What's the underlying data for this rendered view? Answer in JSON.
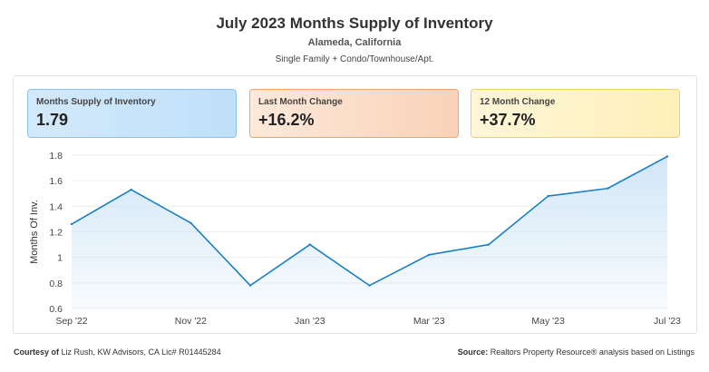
{
  "header": {
    "title": "July 2023 Months Supply of Inventory",
    "location": "Alameda, California",
    "property_types": "Single Family + Condo/Townhouse/Apt."
  },
  "cards": [
    {
      "label": "Months Supply of Inventory",
      "value": "1.79"
    },
    {
      "label": "Last Month Change",
      "value": "+16.2%"
    },
    {
      "label": "12 Month Change",
      "value": "+37.7%"
    }
  ],
  "chart_data": {
    "type": "area",
    "ylabel": "Months Of Inv.",
    "ylim": [
      0.6,
      1.8
    ],
    "yticks": [
      "1.8",
      "1.6",
      "1.4",
      "1.2",
      "1",
      "0.8",
      "0.6"
    ],
    "ytick_values": [
      1.8,
      1.6,
      1.4,
      1.2,
      1.0,
      0.8,
      0.6
    ],
    "x": [
      "Sep '22",
      "Oct '22",
      "Nov '22",
      "Dec '22",
      "Jan '23",
      "Feb '23",
      "Mar '23",
      "Apr '23",
      "May '23",
      "Jun '23",
      "Jul '23"
    ],
    "xticks": [
      "Sep '22",
      "Nov '22",
      "Jan '23",
      "Mar '23",
      "May '23",
      "Jul '23"
    ],
    "values": [
      1.26,
      1.53,
      1.27,
      0.78,
      1.1,
      0.78,
      1.02,
      1.1,
      1.48,
      1.54,
      1.79
    ],
    "line_color": "#1a7fc4",
    "fill_color": "#cfe5f6",
    "grid": "horizontal"
  },
  "footer": {
    "courtesy_label": "Courtesy of",
    "courtesy_text": "Liz Rush, KW Advisors, CA Lic# R01445284",
    "source_label": "Source:",
    "source_text": "Realtors Property Resource® analysis based on Listings"
  }
}
